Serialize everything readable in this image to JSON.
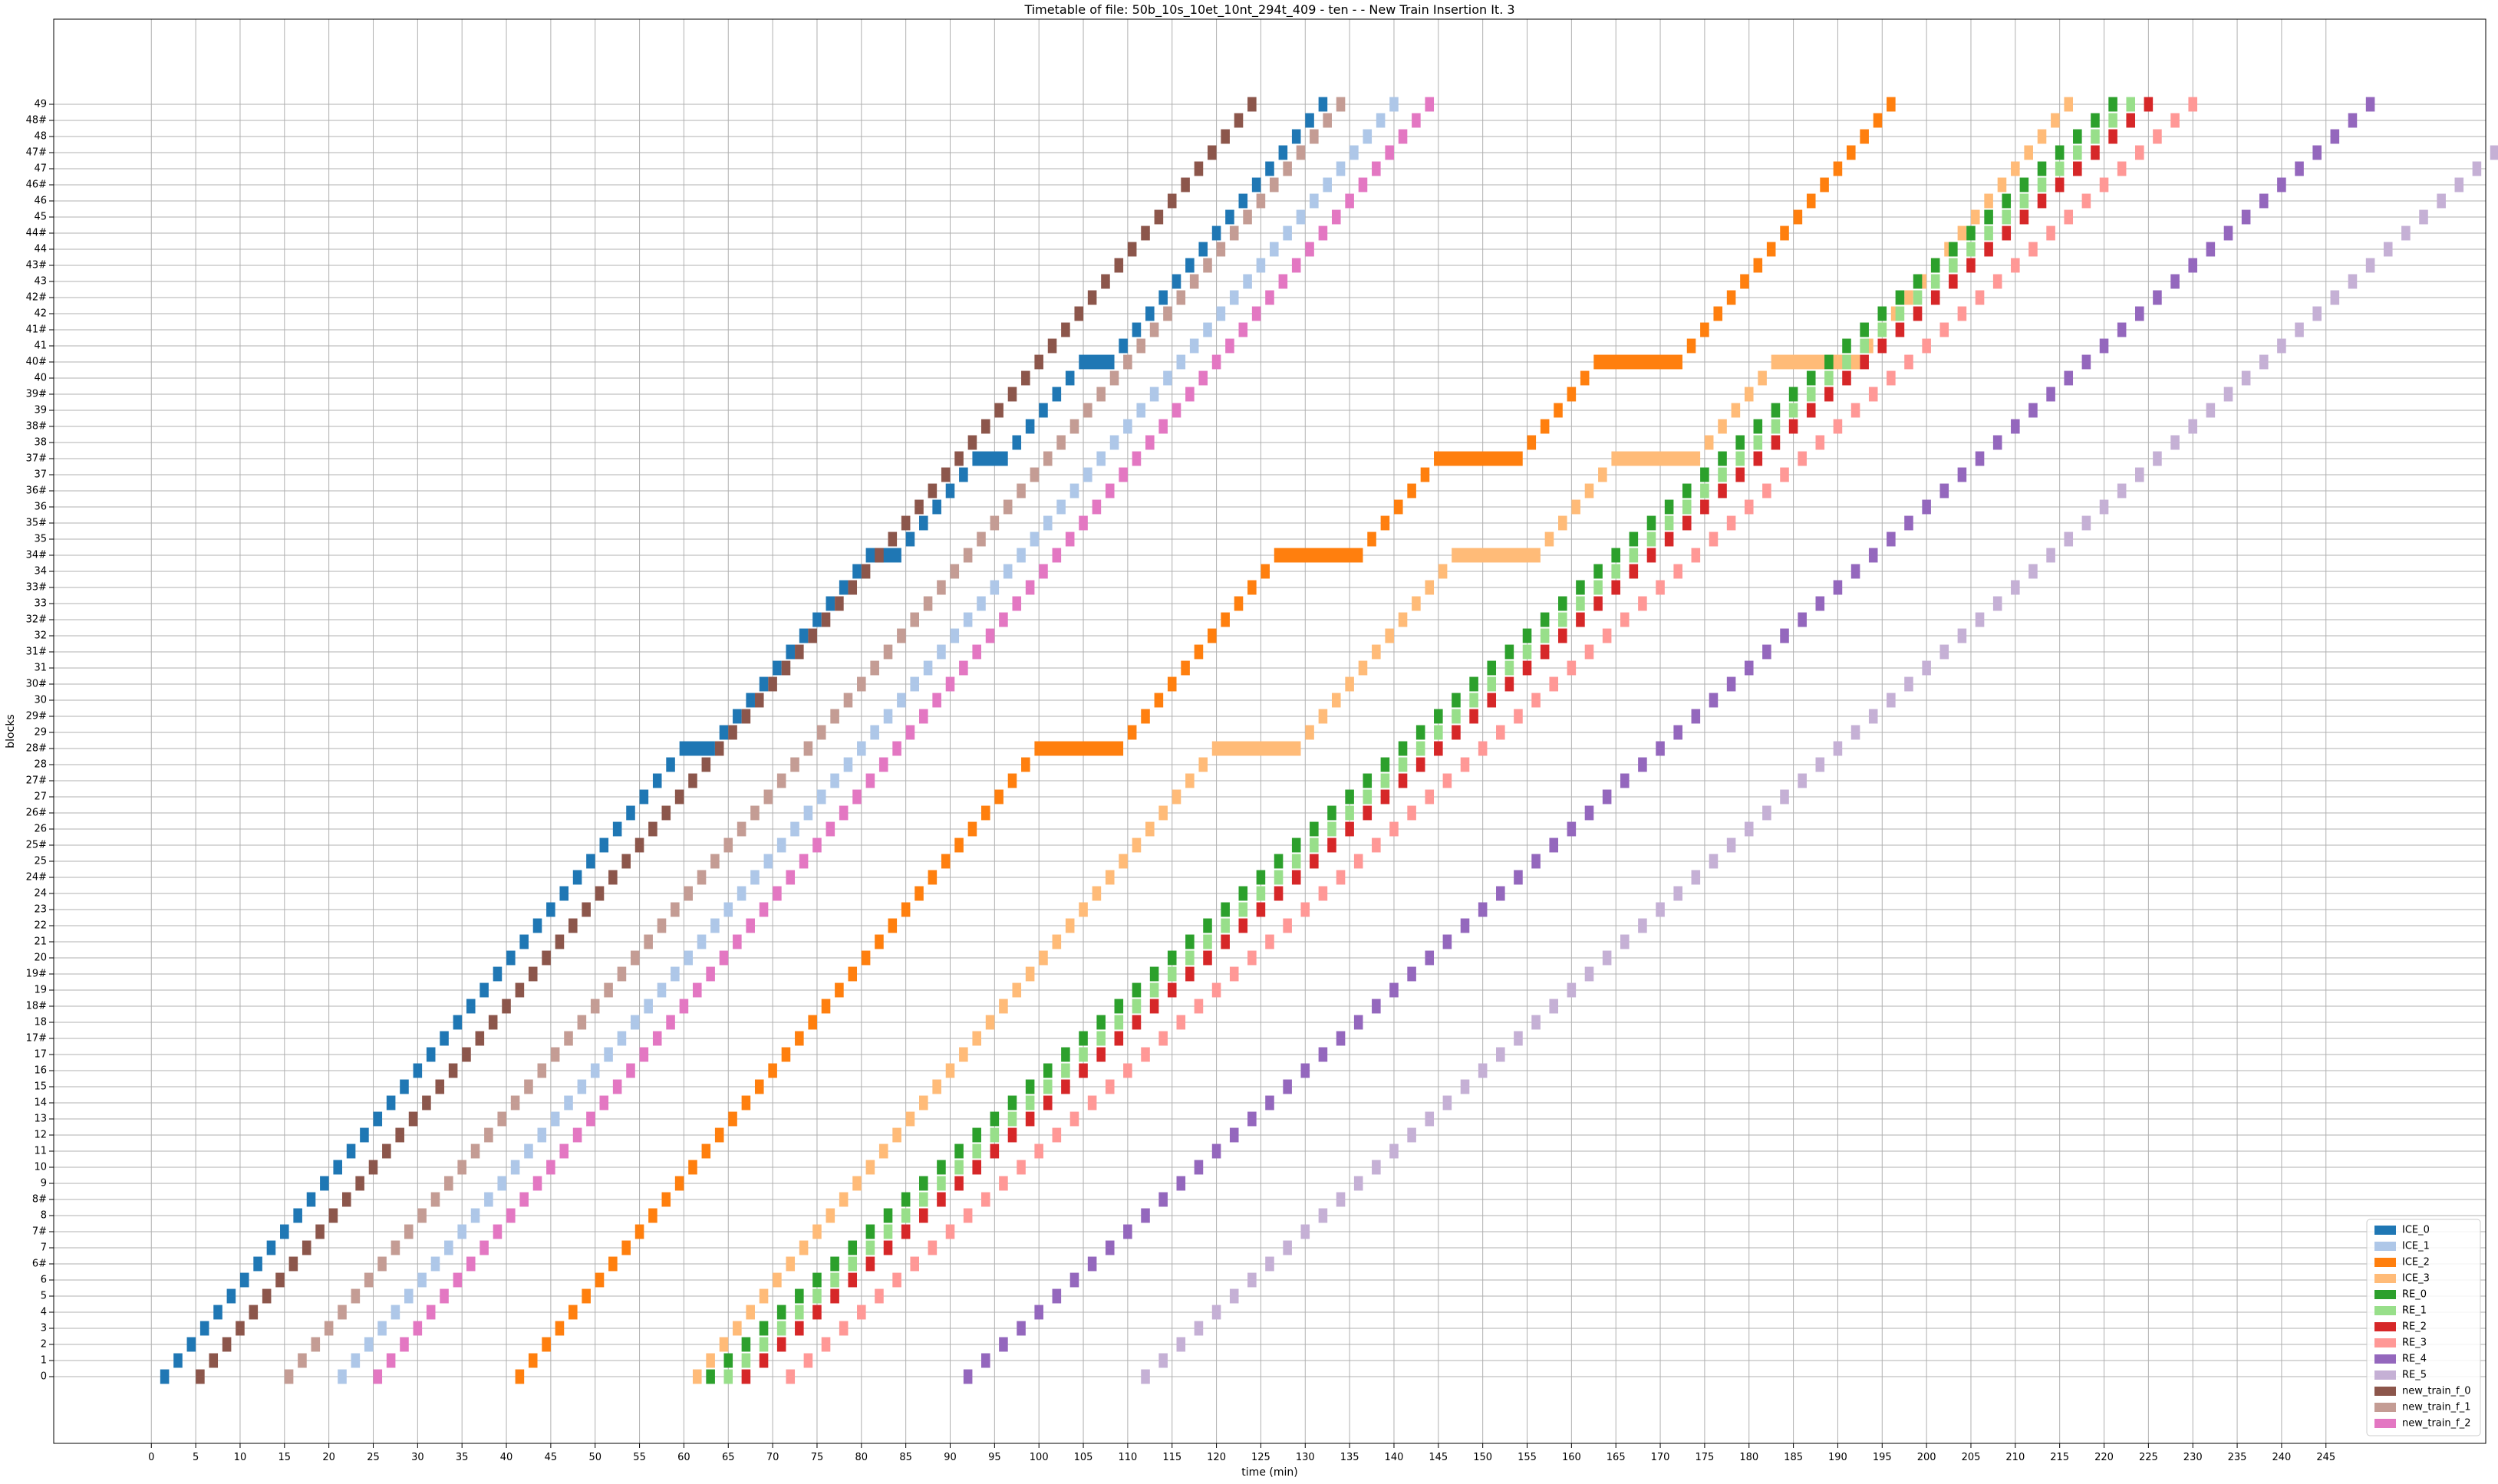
{
  "chart_data": {
    "type": "bar",
    "subtype": "train-timetable-blocks",
    "title": "Timetable of file: 50b_10s_10et_10nt_294t_409 - ten -  - New Train Insertion It. 3",
    "xlabel": "time (min)",
    "ylabel": "blocks",
    "xlim": [
      -11,
      263
    ],
    "x_ticks": [
      0,
      5,
      10,
      15,
      20,
      25,
      30,
      35,
      40,
      45,
      50,
      55,
      60,
      65,
      70,
      75,
      80,
      85,
      90,
      95,
      100,
      105,
      110,
      115,
      120,
      125,
      130,
      135,
      140,
      145,
      150,
      155,
      160,
      165,
      170,
      175,
      180,
      185,
      190,
      195,
      200,
      205,
      210,
      215,
      220,
      225,
      230,
      235,
      240,
      245
    ],
    "blocks": [
      "0",
      "1",
      "2",
      "3",
      "4",
      "5",
      "6",
      "6#",
      "7",
      "7#",
      "8",
      "8#",
      "9",
      "10",
      "11",
      "12",
      "13",
      "14",
      "15",
      "16",
      "17",
      "17#",
      "18",
      "18#",
      "19",
      "19#",
      "20",
      "21",
      "22",
      "23",
      "24",
      "24#",
      "25",
      "25#",
      "26",
      "26#",
      "27",
      "27#",
      "28",
      "28#",
      "29",
      "29#",
      "30",
      "30#",
      "31",
      "31#",
      "32",
      "32#",
      "33",
      "33#",
      "34",
      "34#",
      "35",
      "35#",
      "36",
      "36#",
      "37",
      "37#",
      "38",
      "38#",
      "39",
      "39#",
      "40",
      "40#",
      "41",
      "41#",
      "42",
      "42#",
      "43",
      "43#",
      "44",
      "44#",
      "45",
      "46",
      "46#",
      "47",
      "47#",
      "48",
      "48#",
      "49"
    ],
    "grid": true,
    "legend_position": "lower right",
    "series": [
      {
        "name": "ICE_0",
        "color": "#1f77b4",
        "start": 1,
        "step": 1.5,
        "dwell": 4
      },
      {
        "name": "ICE_1",
        "color": "#aec7e8",
        "start": 21,
        "step": 1.5,
        "dwell": 0
      },
      {
        "name": "ICE_2",
        "color": "#ff7f0e",
        "start": 41,
        "step": 1.5,
        "dwell": 10
      },
      {
        "name": "ICE_3",
        "color": "#ffbb78",
        "start": 61,
        "step": 1.5,
        "dwell": 10
      },
      {
        "name": "RE_0",
        "color": "#2ca02c",
        "start": 62.5,
        "step": 2.0,
        "dwell": 0
      },
      {
        "name": "RE_1",
        "color": "#98df8a",
        "start": 64.5,
        "step": 2.0,
        "dwell": 0
      },
      {
        "name": "RE_2",
        "color": "#d62728",
        "start": 66.5,
        "step": 2.0,
        "dwell": 0
      },
      {
        "name": "RE_3",
        "color": "#ff9896",
        "start": 71.5,
        "step": 2.0,
        "dwell": 0
      },
      {
        "name": "RE_4",
        "color": "#9467bd",
        "start": 91.5,
        "step": 2.0,
        "dwell": 0
      },
      {
        "name": "RE_5",
        "color": "#c5b0d5",
        "start": 111.5,
        "step": 2.0,
        "dwell": 0
      },
      {
        "name": "new_train_f_0",
        "color": "#8c564b",
        "start": 5,
        "step": 1.5,
        "dwell": 0
      },
      {
        "name": "new_train_f_1",
        "color": "#c49c94",
        "start": 15,
        "step": 1.5,
        "dwell": 0
      },
      {
        "name": "new_train_f_2",
        "color": "#e377c2",
        "start": 25,
        "step": 1.5,
        "dwell": 0
      }
    ]
  }
}
